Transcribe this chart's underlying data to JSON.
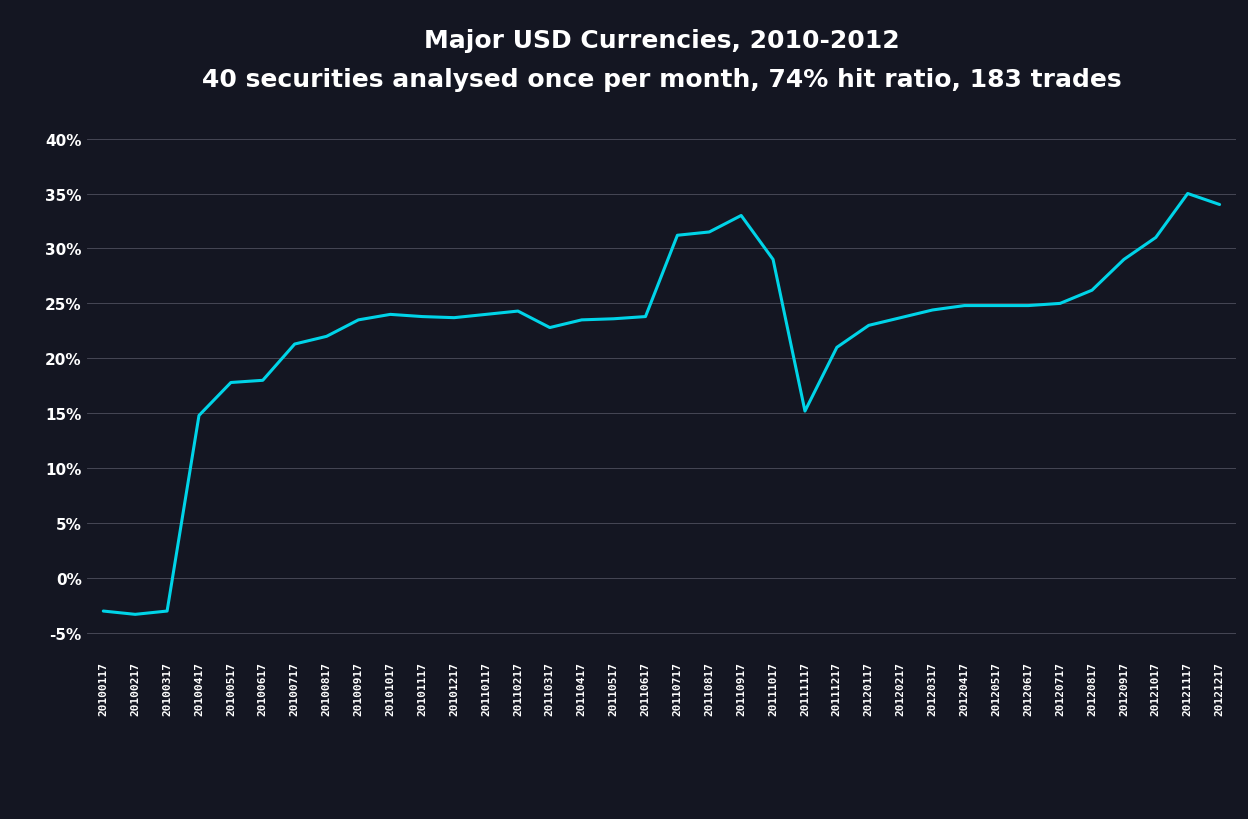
{
  "title": "Major USD Currencies, 2010-2012",
  "subtitle": "40 securities analysed once per month, 74% hit ratio, 183 trades",
  "background_color": "#141622",
  "line_color": "#00d4e8",
  "grid_color": "#888899",
  "text_color": "#ffffff",
  "ylim": [
    -0.07,
    0.43
  ],
  "yticks": [
    -0.05,
    0.0,
    0.05,
    0.1,
    0.15,
    0.2,
    0.25,
    0.3,
    0.35,
    0.4
  ],
  "ytick_labels": [
    "-5%",
    "0%",
    "5%",
    "10%",
    "15%",
    "20%",
    "25%",
    "30%",
    "35%",
    "40%"
  ],
  "x_dates": [
    "20100117",
    "20100217",
    "20100317",
    "20100417",
    "20100517",
    "20100617",
    "20100717",
    "20100817",
    "20100917",
    "20101017",
    "20101117",
    "20101217",
    "20110117",
    "20110217",
    "20110317",
    "20110417",
    "20110517",
    "20110617",
    "20110717",
    "20110817",
    "20110917",
    "20111017",
    "20111117",
    "20111217",
    "20120117",
    "20120217",
    "20120317",
    "20120417",
    "20120517",
    "20120617",
    "20120717",
    "20120817",
    "20120917",
    "20121017",
    "20121117",
    "20121217"
  ],
  "y_values": [
    -0.03,
    -0.033,
    -0.03,
    0.148,
    0.178,
    0.18,
    0.213,
    0.22,
    0.235,
    0.24,
    0.238,
    0.237,
    0.24,
    0.243,
    0.228,
    0.235,
    0.236,
    0.238,
    0.312,
    0.315,
    0.33,
    0.29,
    0.152,
    0.21,
    0.23,
    0.237,
    0.244,
    0.248,
    0.248,
    0.248,
    0.25,
    0.262,
    0.29,
    0.31,
    0.35,
    0.34
  ],
  "title_fontsize": 18,
  "subtitle_fontsize": 15,
  "tick_fontsize": 11,
  "line_width": 2.2
}
